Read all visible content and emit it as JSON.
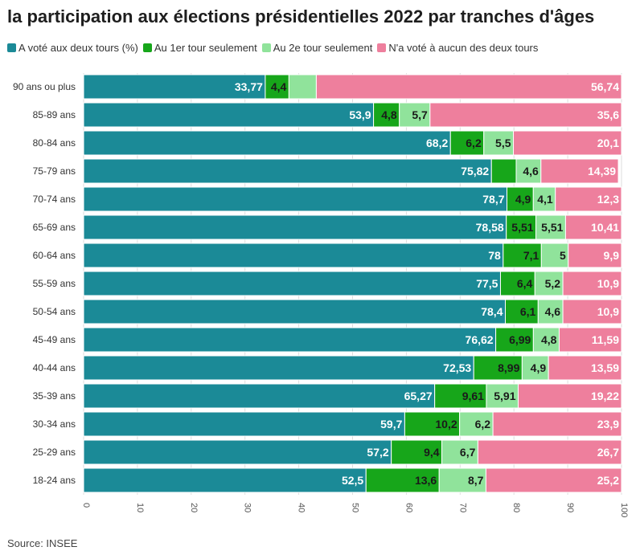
{
  "title": "la participation aux élections présidentielles 2022 par tranches d'âges",
  "source": "Source: INSEE",
  "colors": {
    "series": [
      "#1b8a97",
      "#17a61a",
      "#90e39b",
      "#ee7f9d"
    ],
    "label_dark": "#1a1a1a",
    "label_light": "#ffffff",
    "grid": "#dddddd"
  },
  "chart_data": {
    "type": "bar",
    "orientation": "horizontal",
    "stacked": true,
    "legend_position": "top-left",
    "xlim": [
      0,
      100
    ],
    "ticks": [
      0,
      10,
      20,
      30,
      40,
      50,
      60,
      70,
      80,
      90,
      100
    ],
    "categories": [
      "90 ans ou plus",
      "85-89 ans",
      "80-84 ans",
      "75-79 ans",
      "70-74 ans",
      "65-69 ans",
      "60-64 ans",
      "55-59 ans",
      "50-54 ans",
      "45-49 ans",
      "40-44 ans",
      "35-39 ans",
      "30-34 ans",
      "25-29 ans",
      "18-24 ans"
    ],
    "series": [
      {
        "name": "A voté aux deux tours (%)",
        "values": [
          33.77,
          53.9,
          68.2,
          75.82,
          78.7,
          78.58,
          78,
          77.5,
          78.4,
          76.62,
          72.53,
          65.27,
          59.7,
          57.2,
          52.5
        ]
      },
      {
        "name": "Au 1er tour seulement",
        "values": [
          4.4,
          4.8,
          6.2,
          4.6,
          4.9,
          5.51,
          7.1,
          6.4,
          6.1,
          6.99,
          8.99,
          9.61,
          10.2,
          9.4,
          13.6
        ]
      },
      {
        "name": "Au 2e tour seulement",
        "values": [
          5.09,
          5.7,
          5.5,
          4.6,
          4.1,
          5.51,
          5,
          5.2,
          4.6,
          4.8,
          4.9,
          5.91,
          6.2,
          6.7,
          8.7
        ]
      },
      {
        "name": "N'a voté à aucun des deux tours",
        "values": [
          56.74,
          35.6,
          20.1,
          14.39,
          12.3,
          10.41,
          9.9,
          10.9,
          10.9,
          11.59,
          13.59,
          19.22,
          23.9,
          26.7,
          25.2
        ]
      }
    ],
    "data_labels": [
      [
        "33,77",
        "4,4",
        "",
        "56,74"
      ],
      [
        "53,9",
        "4,8",
        "5,7",
        "35,6"
      ],
      [
        "68,2",
        "6,2",
        "5,5",
        "20,1"
      ],
      [
        "75,82",
        "",
        "4,6",
        "14,39"
      ],
      [
        "78,7",
        "4,9",
        "4,1",
        "12,3"
      ],
      [
        "78,58",
        "5,51",
        "5,51",
        "10,41"
      ],
      [
        "78",
        "7,1",
        "5",
        "9,9"
      ],
      [
        "77,5",
        "6,4",
        "5,2",
        "10,9"
      ],
      [
        "78,4",
        "6,1",
        "4,6",
        "10,9"
      ],
      [
        "76,62",
        "6,99",
        "4,8",
        "11,59"
      ],
      [
        "72,53",
        "8,99",
        "4,9",
        "13,59"
      ],
      [
        "65,27",
        "9,61",
        "5,91",
        "19,22"
      ],
      [
        "59,7",
        "10,2",
        "6,2",
        "23,9"
      ],
      [
        "57,2",
        "9,4",
        "6,7",
        "26,7"
      ],
      [
        "52,5",
        "13,6",
        "8,7",
        "25,2"
      ]
    ]
  }
}
